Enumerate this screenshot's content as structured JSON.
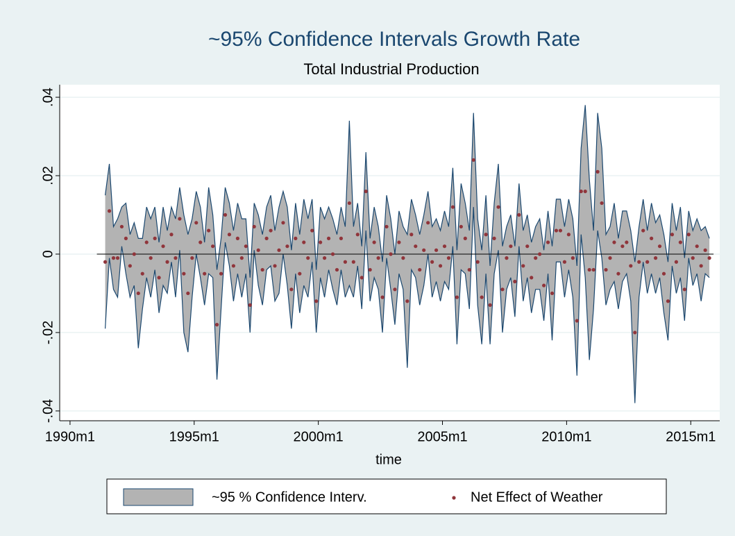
{
  "chart_data": {
    "type": "area",
    "title": "~95% Confidence Intervals Growth Rate",
    "subtitle": "Total Industrial Production",
    "x_label": "time",
    "xlim": [
      355,
      674
    ],
    "xticks": [
      {
        "value": 360,
        "label": "1990m1"
      },
      {
        "value": 420,
        "label": "1995m1"
      },
      {
        "value": 480,
        "label": "2000m1"
      },
      {
        "value": 540,
        "label": "2005m1"
      },
      {
        "value": 600,
        "label": "2010m1"
      },
      {
        "value": 660,
        "label": "2015m1"
      }
    ],
    "ylim": [
      -0.0425,
      0.0432
    ],
    "yticks": [
      {
        "value": -0.04,
        "label": "-.04"
      },
      {
        "value": -0.02,
        "label": "-.02"
      },
      0,
      {
        "value": 0.02,
        "label": ".02"
      },
      {
        "value": 0.04,
        "label": ".04"
      }
    ],
    "grid": true,
    "legend": "bottom",
    "x": [
      377,
      379,
      381,
      383,
      385,
      387,
      389,
      391,
      393,
      395,
      397,
      399,
      401,
      403,
      405,
      407,
      409,
      411,
      413,
      415,
      417,
      419,
      421,
      423,
      425,
      427,
      429,
      431,
      433,
      435,
      437,
      439,
      441,
      443,
      445,
      447,
      449,
      451,
      453,
      455,
      457,
      459,
      461,
      463,
      465,
      467,
      469,
      471,
      473,
      475,
      477,
      479,
      481,
      483,
      485,
      487,
      489,
      491,
      493,
      495,
      497,
      499,
      501,
      503,
      505,
      507,
      509,
      511,
      513,
      515,
      517,
      519,
      521,
      523,
      525,
      527,
      529,
      531,
      533,
      535,
      537,
      539,
      541,
      543,
      545,
      547,
      549,
      551,
      553,
      555,
      557,
      559,
      561,
      563,
      565,
      567,
      569,
      571,
      573,
      575,
      577,
      579,
      581,
      583,
      585,
      587,
      589,
      591,
      593,
      595,
      597,
      599,
      601,
      603,
      605,
      607,
      609,
      611,
      613,
      615,
      617,
      619,
      621,
      623,
      625,
      627,
      629,
      631,
      633,
      635,
      637,
      639,
      641,
      643,
      645,
      647,
      649,
      651,
      653,
      655,
      657,
      659,
      661,
      663,
      665,
      667,
      669
    ],
    "series": [
      {
        "name": "~95 % Confidence Interv.",
        "color": "#b3b3b3",
        "line_color": "#1a476f",
        "lower": [
          -0.019,
          -0.001,
          -0.009,
          -0.011,
          0.002,
          -0.005,
          -0.011,
          -0.008,
          -0.024,
          -0.014,
          -0.006,
          -0.011,
          -0.004,
          -0.015,
          -0.008,
          -0.01,
          -0.002,
          -0.011,
          0.001,
          -0.02,
          -0.025,
          -0.011,
          0,
          -0.006,
          -0.013,
          -0.005,
          -0.006,
          -0.032,
          -0.014,
          0.003,
          -0.003,
          -0.012,
          -0.005,
          -0.011,
          -0.005,
          -0.02,
          0.001,
          -0.008,
          -0.013,
          -0.004,
          -0.003,
          -0.012,
          -0.01,
          0,
          -0.008,
          -0.019,
          -0.005,
          -0.015,
          -0.008,
          -0.011,
          -0.002,
          -0.02,
          -0.006,
          -0.011,
          -0.004,
          -0.009,
          -0.013,
          -0.004,
          -0.011,
          -0.008,
          -0.011,
          -0.003,
          -0.014,
          0.006,
          -0.012,
          -0.006,
          -0.009,
          -0.02,
          -0.001,
          -0.009,
          -0.018,
          -0.005,
          -0.009,
          -0.029,
          -0.004,
          -0.006,
          -0.013,
          -0.008,
          0,
          -0.011,
          -0.007,
          -0.012,
          -0.007,
          -0.009,
          0.002,
          -0.023,
          -0.004,
          -0.005,
          -0.014,
          0.012,
          -0.013,
          -0.023,
          -0.005,
          -0.023,
          -0.005,
          0.001,
          -0.02,
          -0.009,
          -0.006,
          -0.016,
          0.002,
          -0.012,
          -0.006,
          -0.015,
          -0.009,
          -0.009,
          -0.017,
          -0.005,
          -0.022,
          -0.002,
          -0.002,
          -0.011,
          -0.004,
          -0.011,
          -0.031,
          0.005,
          -0.006,
          -0.027,
          -0.014,
          0.006,
          -0.001,
          -0.013,
          -0.009,
          -0.007,
          -0.014,
          -0.007,
          -0.005,
          -0.012,
          -0.038,
          -0.011,
          -0.002,
          -0.01,
          -0.005,
          -0.01,
          -0.006,
          -0.015,
          -0.022,
          -0.003,
          -0.01,
          -0.006,
          -0.017,
          -0.001,
          -0.008,
          -0.005,
          -0.012,
          -0.005,
          -0.006
        ],
        "upper": [
          0.015,
          0.023,
          0.007,
          0.009,
          0.012,
          0.013,
          0.005,
          0.008,
          0.004,
          0.004,
          0.012,
          0.009,
          0.012,
          0.003,
          0.012,
          0.006,
          0.012,
          0.009,
          0.017,
          0.01,
          0.005,
          0.009,
          0.016,
          0.012,
          0.003,
          0.017,
          0.01,
          -0.004,
          0.004,
          0.017,
          0.013,
          0.006,
          0.013,
          0.009,
          0.009,
          -0.006,
          0.013,
          0.01,
          0.005,
          0.012,
          0.015,
          0.006,
          0.012,
          0.016,
          0.012,
          0.001,
          0.013,
          0.005,
          0.014,
          0.009,
          0.014,
          -0.004,
          0.012,
          0.009,
          0.012,
          0.009,
          0.005,
          0.012,
          0.007,
          0.034,
          0.007,
          0.013,
          0.002,
          0.026,
          0.004,
          0.012,
          0.007,
          -0.002,
          0.015,
          0.009,
          0,
          0.011,
          0.007,
          0.005,
          0.014,
          0.01,
          0.005,
          0.01,
          0.016,
          0.007,
          0.009,
          0.006,
          0.011,
          0.007,
          0.022,
          0.001,
          0.018,
          0.013,
          0.006,
          0.036,
          0.009,
          0.001,
          0.015,
          -0.003,
          0.013,
          0.023,
          0.002,
          0.007,
          0.01,
          0.002,
          0.018,
          0.006,
          0.01,
          0.003,
          0.007,
          0.009,
          0.001,
          0.011,
          0.002,
          0.014,
          0.014,
          0.007,
          0.014,
          0.009,
          -0.003,
          0.027,
          0.038,
          0.019,
          0.006,
          0.036,
          0.027,
          0.005,
          0.007,
          0.013,
          0.004,
          0.011,
          0.011,
          0.006,
          -0.002,
          0.007,
          0.014,
          0.006,
          0.013,
          0.008,
          0.01,
          0.005,
          -0.002,
          0.013,
          0.006,
          0.012,
          -0.001,
          0.011,
          0.006,
          0.009,
          0.006,
          0.007,
          0.004
        ]
      },
      {
        "name": "Net Effect of Weather",
        "color": "#90353b",
        "values": [
          -0.002,
          0.011,
          -0.001,
          -0.001,
          0.007,
          0.004,
          -0.003,
          0,
          -0.01,
          -0.005,
          0.003,
          -0.001,
          0.004,
          -0.006,
          0.002,
          -0.002,
          0.005,
          -0.001,
          0.009,
          -0.005,
          -0.01,
          -0.001,
          0.008,
          0.003,
          -0.005,
          0.006,
          0.002,
          -0.018,
          -0.005,
          0.01,
          0.005,
          -0.003,
          0.004,
          -0.001,
          0.002,
          -0.013,
          0.007,
          0.001,
          -0.004,
          0.004,
          0.006,
          -0.003,
          0.001,
          0.008,
          0.002,
          -0.009,
          0.004,
          -0.005,
          0.003,
          -0.001,
          0.006,
          -0.012,
          0.003,
          -0.001,
          0.004,
          0,
          -0.004,
          0.004,
          -0.002,
          0.013,
          -0.002,
          0.005,
          -0.006,
          0.016,
          -0.004,
          0.003,
          -0.001,
          -0.011,
          0.007,
          0,
          -0.009,
          0.003,
          -0.001,
          -0.012,
          0.005,
          0.002,
          -0.004,
          0.001,
          0.008,
          -0.002,
          0.001,
          -0.003,
          0.002,
          -0.001,
          0.012,
          -0.011,
          0.007,
          0.004,
          -0.004,
          0.024,
          -0.002,
          -0.011,
          0.005,
          -0.013,
          0.004,
          0.012,
          -0.009,
          -0.001,
          0.002,
          -0.007,
          0.01,
          -0.003,
          0.002,
          -0.006,
          -0.001,
          0,
          -0.008,
          0.003,
          -0.01,
          0.006,
          0.006,
          -0.002,
          0.005,
          -0.001,
          -0.017,
          0.016,
          0.016,
          -0.004,
          -0.004,
          0.021,
          0.013,
          -0.004,
          -0.001,
          0.003,
          -0.005,
          0.002,
          0.003,
          -0.003,
          -0.02,
          -0.002,
          0.006,
          -0.002,
          0.004,
          -0.001,
          0.002,
          -0.005,
          -0.012,
          0.005,
          -0.002,
          0.003,
          -0.009,
          0.005,
          -0.001,
          0.002,
          -0.003,
          0.001,
          -0.001
        ]
      }
    ]
  }
}
